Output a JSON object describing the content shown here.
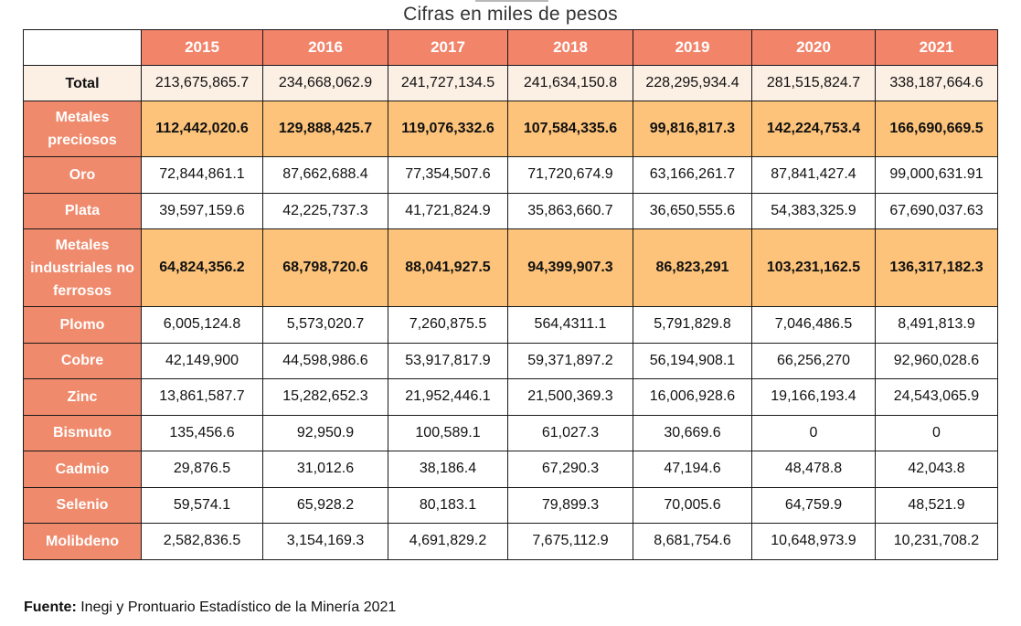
{
  "caption": "Cifras en miles de pesos",
  "table": {
    "years": [
      "2015",
      "2016",
      "2017",
      "2018",
      "2019",
      "2020",
      "2021"
    ],
    "rows": [
      {
        "label": "Total",
        "values": [
          "213,675,865.7",
          "234,668,062.9",
          "241,727,134.5",
          "241,634,150.8",
          "228,295,934.4",
          "281,515,824.7",
          "338,187,664.6"
        ]
      },
      {
        "label": "Metales preciosos",
        "values": [
          "112,442,020.6",
          "129,888,425.7",
          "119,076,332.6",
          "107,584,335.6",
          "99,816,817.3",
          "142,224,753.4",
          "166,690,669.5"
        ]
      },
      {
        "label": "Oro",
        "values": [
          "72,844,861.1",
          "87,662,688.4",
          "77,354,507.6",
          "71,720,674.9",
          "63,166,261.7",
          "87,841,427.4",
          "99,000,631.91"
        ]
      },
      {
        "label": "Plata",
        "values": [
          "39,597,159.6",
          "42,225,737.3",
          "41,721,824.9",
          "35,863,660.7",
          "36,650,555.6",
          "54,383,325.9",
          "67,690,037.63"
        ]
      },
      {
        "label": "Metales industriales no ferrosos",
        "values": [
          "64,824,356.2",
          "68,798,720.6",
          "88,041,927.5",
          "94,399,907.3",
          "86,823,291",
          "103,231,162.5",
          "136,317,182.3"
        ]
      },
      {
        "label": "Plomo",
        "values": [
          "6,005,124.8",
          "5,573,020.7",
          "7,260,875.5",
          "564,4311.1",
          "5,791,829.8",
          "7,046,486.5",
          "8,491,813.9"
        ]
      },
      {
        "label": "Cobre",
        "values": [
          "42,149,900",
          "44,598,986.6",
          "53,917,817.9",
          "59,371,897.2",
          "56,194,908.1",
          "66,256,270",
          "92,960,028.6"
        ]
      },
      {
        "label": "Zinc",
        "values": [
          "13,861,587.7",
          "15,282,652.3",
          "21,952,446.1",
          "21,500,369.3",
          "16,006,928.6",
          "19,166,193.4",
          "24,543,065.9"
        ]
      },
      {
        "label": "Bismuto",
        "values": [
          "135,456.6",
          "92,950.9",
          "100,589.1",
          "61,027.3",
          "30,669.6",
          "0",
          "0"
        ]
      },
      {
        "label": "Cadmio",
        "values": [
          "29,876.5",
          "31,012.6",
          "38,186.4",
          "67,290.3",
          "47,194.6",
          "48,478.8",
          "42,043.8"
        ]
      },
      {
        "label": "Selenio",
        "values": [
          "59,574.1",
          "65,928.2",
          "80,183.1",
          "79,899.3",
          "70,005.6",
          "64,759.9",
          "48,521.9"
        ]
      },
      {
        "label": "Molibdeno",
        "values": [
          "2,582,836.5",
          "3,154,169.3",
          "4,691,829.2",
          "7,675,112.9",
          "8,681,754.6",
          "10,648,973.9",
          "10,231,708.2"
        ]
      }
    ]
  },
  "source": {
    "label": "Fuente:",
    "text": " Inegi y Prontuario Estadístico de la Minería 2021"
  },
  "colors": {
    "header_bg": "#f2846a",
    "label_bg": "#ef8a6c",
    "group_bg": "#fdc37a",
    "total_bg": "#fcefe4"
  }
}
